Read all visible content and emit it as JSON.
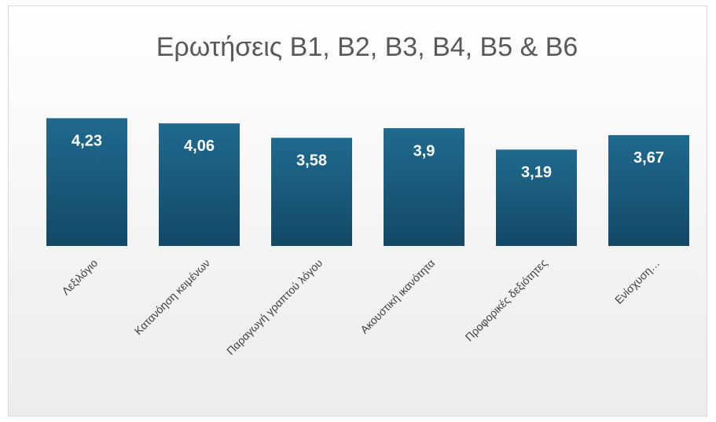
{
  "chart_data": {
    "type": "bar",
    "title": "Ερωτήσεις Β1, Β2, Β3, Β4, Β5 & Β6",
    "categories": [
      "Λεξιλόγιο",
      "Κατανόηση κειμένων",
      "Παραγωγή γραπτού λόγου",
      "Ακουστική ικανότητα",
      "Προφορικές δεξιότητες",
      "Ενίσχυση…"
    ],
    "values": [
      4.23,
      4.06,
      3.58,
      3.9,
      3.19,
      3.67
    ],
    "value_labels": [
      "4,23",
      "4,06",
      "3,58",
      "3,9",
      "3,19",
      "3,67"
    ],
    "color": "#1a5a7e",
    "ylim": [
      0,
      4.5
    ]
  }
}
